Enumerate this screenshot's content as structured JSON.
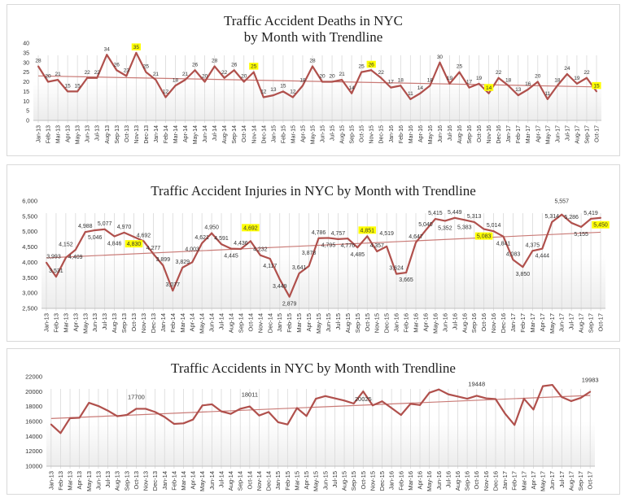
{
  "months": [
    "Jan-13",
    "Feb-13",
    "Mar-13",
    "Apr-13",
    "May-13",
    "Jun-13",
    "Jul-13",
    "Aug-13",
    "Sep-13",
    "Oct-13",
    "Nov-13",
    "Dec-13",
    "Jan-14",
    "Feb-14",
    "Mar-14",
    "Apr-14",
    "May-14",
    "Jun-14",
    "Jul-14",
    "Aug-14",
    "Sep-14",
    "Oct-14",
    "Nov-14",
    "Dec-14",
    "Jan-15",
    "Feb-15",
    "Mar-15",
    "Apr-15",
    "May-15",
    "Jun-15",
    "Jul-15",
    "Aug-15",
    "Sep-15",
    "Oct-15",
    "Nov-15",
    "Dec-15",
    "Jan-16",
    "Feb-16",
    "Mar-16",
    "Apr-16",
    "May-16",
    "Jun-16",
    "Jul-16",
    "Aug-16",
    "Sep-16",
    "Oct-16",
    "Nov-16",
    "Dec-16",
    "Jan-17",
    "Feb-17",
    "Mar-17",
    "Apr-17",
    "May-17",
    "Jun-17",
    "Jul-17",
    "Aug-17",
    "Sep-17",
    "Oct-17"
  ],
  "colors": {
    "line": "#b0504c",
    "trend": "#c97a76",
    "highlight": "#ffff00",
    "grid": "#d9d9d9"
  },
  "chart_data": [
    {
      "type": "line",
      "title_line1": "Traffic Accident Deaths in NYC",
      "title_line2": "by Month with  Trendline",
      "ylim": [
        0,
        40
      ],
      "ystep": 5,
      "trendline": true,
      "grid": "vertical",
      "values": [
        28,
        20,
        21,
        15,
        15,
        22,
        22,
        34,
        26,
        23,
        35,
        25,
        21,
        12,
        18,
        21,
        26,
        20,
        28,
        22,
        26,
        20,
        25,
        12,
        13,
        15,
        12,
        18,
        28,
        20,
        20,
        21,
        14,
        25,
        26,
        22,
        17,
        18,
        11,
        14,
        18,
        30,
        19,
        25,
        17,
        19,
        14,
        22,
        18,
        13,
        16,
        20,
        11,
        18,
        24,
        19,
        22,
        15
      ],
      "labels": "all",
      "highlighted": [
        "Nov-13",
        "Nov-14",
        "Nov-15",
        "Nov-16",
        "Oct-17"
      ]
    },
    {
      "type": "line",
      "title_line1": "Traffic Accident Injuries in NYC  by Month with  Trendline",
      "ylim": [
        2500,
        6000
      ],
      "ystep": 500,
      "trendline": true,
      "grid": "vertical",
      "values": [
        3993,
        3531,
        4152,
        4409,
        4988,
        5046,
        5077,
        4846,
        4970,
        4830,
        4692,
        4277,
        3899,
        3077,
        3829,
        4003,
        4621,
        4950,
        4591,
        4445,
        4436,
        4692,
        4232,
        4117,
        3449,
        2879,
        3641,
        3878,
        4786,
        4795,
        4757,
        4776,
        4485,
        4851,
        4357,
        4519,
        3624,
        3665,
        4647,
        5040,
        5415,
        5352,
        5449,
        5383,
        5313,
        5083,
        5014,
        4841,
        4083,
        3850,
        4375,
        4444,
        5314,
        5557,
        5286,
        5155,
        5419,
        5450
      ],
      "labels": "all",
      "highlighted": [
        "Oct-13",
        "Oct-14",
        "Oct-15",
        "Oct-16",
        "Oct-17"
      ]
    },
    {
      "type": "line",
      "title_line1": "Traffic Accidents in NYC  by Month with  Trendline",
      "ylim": [
        10000,
        22000
      ],
      "ystep": 2000,
      "trendline": true,
      "grid": "vertical",
      "values": [
        15600,
        14440,
        16440,
        16500,
        18500,
        18070,
        17450,
        16700,
        16870,
        17700,
        17700,
        17270,
        16600,
        15670,
        15750,
        16250,
        18150,
        18300,
        17350,
        17020,
        17700,
        18011,
        16800,
        17270,
        15900,
        15600,
        17800,
        16730,
        19050,
        19400,
        19100,
        18800,
        18400,
        20025,
        18150,
        18700,
        17800,
        16870,
        18360,
        18200,
        19850,
        20290,
        19640,
        19350,
        19050,
        19448,
        19100,
        19000,
        17050,
        15530,
        19050,
        17600,
        20730,
        20900,
        19270,
        18730,
        19160,
        19983
      ],
      "labeled_points": [
        "Oct-13",
        "Oct-14",
        "Oct-15",
        "Oct-16",
        "Oct-17"
      ],
      "highlighted": []
    }
  ]
}
